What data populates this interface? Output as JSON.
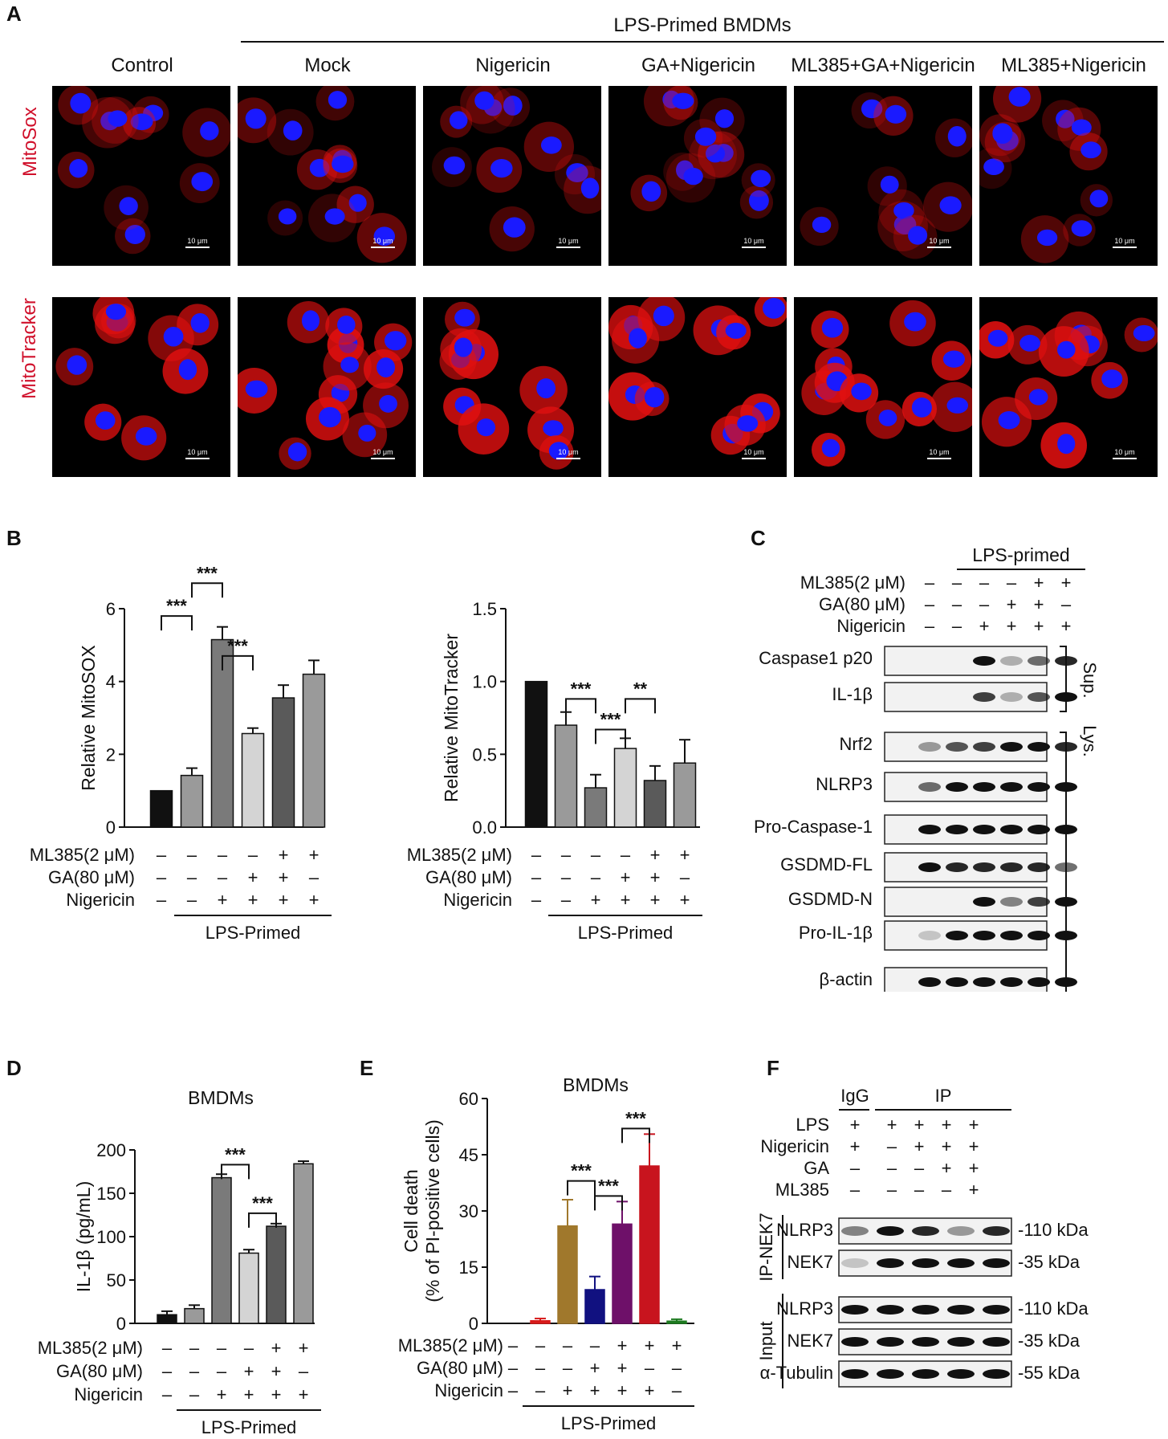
{
  "panel_letters": [
    "A",
    "B",
    "C",
    "D",
    "E",
    "F"
  ],
  "panelA": {
    "header": "LPS-Primed BMDMs",
    "conditions": [
      "Control",
      "Mock",
      "Nigericin",
      "GA+Nigericin",
      "ML385+GA+Nigericin",
      "ML385+Nigericin"
    ],
    "rows": [
      "MitoSox",
      "MitoTracker"
    ],
    "scale_bar": "10 μm",
    "colors": {
      "nucleus": "#1a1aff",
      "signal": "#e01010",
      "row_label": "#d0102b"
    }
  },
  "treatment": {
    "rows": [
      "ML385(2 μM)",
      "GA(80 μM)",
      "Nigericin"
    ],
    "primed": "LPS-Primed"
  },
  "chart_data": [
    {
      "panel": "B-left",
      "type": "bar",
      "ylabel": "Relative MitoSOX",
      "ylim": [
        0,
        6
      ],
      "yticks": [
        0,
        2,
        4,
        6
      ],
      "values": [
        1.0,
        1.42,
        5.15,
        2.57,
        3.55,
        4.2
      ],
      "errors": [
        0,
        0.2,
        0.35,
        0.15,
        0.35,
        0.38
      ],
      "bar_colors": [
        "#111111",
        "#9a9a9a",
        "#7a7a7a",
        "#d4d4d4",
        "#5a5a5a",
        "#9a9a9a"
      ],
      "ML385": [
        "–",
        "–",
        "–",
        "–",
        "+",
        "+"
      ],
      "GA": [
        "–",
        "–",
        "–",
        "+",
        "+",
        "–"
      ],
      "Nigericin": [
        "–",
        "–",
        "+",
        "+",
        "+",
        "+"
      ],
      "sig": [
        {
          "a": 2,
          "b": 1,
          "y": 5.8,
          "label": "***"
        },
        {
          "a": 3,
          "b": 2,
          "y": 6.7,
          "label": "***"
        },
        {
          "a": 4,
          "b": 3,
          "y": 4.7,
          "label": "***"
        }
      ]
    },
    {
      "panel": "B-right",
      "type": "bar",
      "ylabel": "Relative MitoTracker",
      "ylim": [
        0,
        1.5
      ],
      "yticks": [
        0.0,
        0.5,
        1.0,
        1.5
      ],
      "values": [
        1.0,
        0.7,
        0.27,
        0.54,
        0.32,
        0.44
      ],
      "errors": [
        0,
        0.09,
        0.09,
        0.07,
        0.1,
        0.16
      ],
      "bar_colors": [
        "#111111",
        "#9a9a9a",
        "#7a7a7a",
        "#d4d4d4",
        "#5a5a5a",
        "#9a9a9a"
      ],
      "ML385": [
        "–",
        "–",
        "–",
        "–",
        "+",
        "+"
      ],
      "GA": [
        "–",
        "–",
        "–",
        "+",
        "+",
        "–"
      ],
      "Nigericin": [
        "–",
        "–",
        "+",
        "+",
        "+",
        "+"
      ],
      "sig": [
        {
          "a": 2,
          "b": 3,
          "y": 0.88,
          "label": "***"
        },
        {
          "a": 3,
          "b": 4,
          "y": 0.67,
          "label": "***"
        },
        {
          "a": 4,
          "b": 5,
          "y": 0.88,
          "label": "**"
        }
      ]
    },
    {
      "panel": "D",
      "type": "bar",
      "title": "BMDMs",
      "ylabel": "IL-1β (pg/mL)",
      "ylim": [
        0,
        200
      ],
      "yticks": [
        0,
        50,
        100,
        150,
        200
      ],
      "values": [
        10,
        17,
        168,
        81,
        112,
        184
      ],
      "errors": [
        4,
        4,
        4,
        4,
        3,
        3
      ],
      "bar_colors": [
        "#111111",
        "#9a9a9a",
        "#7a7a7a",
        "#d4d4d4",
        "#5a5a5a",
        "#9a9a9a"
      ],
      "ML385": [
        "–",
        "–",
        "–",
        "–",
        "+",
        "+"
      ],
      "GA": [
        "–",
        "–",
        "–",
        "+",
        "+",
        "–"
      ],
      "Nigericin": [
        "–",
        "–",
        "+",
        "+",
        "+",
        "+"
      ],
      "sig": [
        {
          "a": 3,
          "b": 4,
          "y": 183,
          "label": "***"
        },
        {
          "a": 4,
          "b": 5,
          "y": 127,
          "label": "***"
        }
      ]
    },
    {
      "panel": "E",
      "type": "bar",
      "title": "BMDMs",
      "ylabel": "Cell death",
      "ylabel2": "(% of PI-positive cells)",
      "ylim": [
        0,
        60
      ],
      "yticks": [
        0,
        15,
        30,
        45,
        60
      ],
      "values": [
        0,
        0.7,
        26,
        9,
        26.5,
        42,
        0.6
      ],
      "errors": [
        0,
        0.6,
        7,
        3.5,
        6,
        8.5,
        0.5
      ],
      "bar_colors": [
        "#000000",
        "#d81b1b",
        "#a0782c",
        "#111180",
        "#6e1069",
        "#c8141e",
        "#1d7a20"
      ],
      "ML385": [
        "–",
        "–",
        "–",
        "–",
        "+",
        "+",
        "+"
      ],
      "GA": [
        "–",
        "–",
        "–",
        "+",
        "+",
        "–",
        "–"
      ],
      "Nigericin": [
        "–",
        "–",
        "+",
        "+",
        "+",
        "+",
        "–"
      ],
      "sig": [
        {
          "a": 3,
          "b": 4,
          "y": 38,
          "label": "***"
        },
        {
          "a": 4,
          "b": 5,
          "y": 34,
          "label": "***"
        },
        {
          "a": 5,
          "b": 6,
          "y": 52,
          "label": "***"
        }
      ]
    }
  ],
  "panelC": {
    "header": "LPS-primed",
    "ML385": [
      "–",
      "–",
      "–",
      "–",
      "+",
      "+"
    ],
    "GA": [
      "–",
      "–",
      "–",
      "+",
      "+",
      "–"
    ],
    "Nigericin": [
      "–",
      "–",
      "+",
      "+",
      "+",
      "+"
    ],
    "treatment_rows": [
      "ML385(2 μM)",
      "GA(80 μM)",
      "Nigericin"
    ],
    "blots": [
      "Caspase1 p20",
      "IL-1β",
      "Nrf2",
      "NLRP3",
      "Pro-Caspase-1",
      "GSDMD-FL",
      "GSDMD-N",
      "Pro-IL-1β",
      "β-actin"
    ],
    "group_sup": "Sup.",
    "group_lys": "Lys."
  },
  "panelF": {
    "igg": "IgG",
    "ip": "IP",
    "treatment_rows": [
      "LPS",
      "Nigericin",
      "GA",
      "ML385"
    ],
    "LPS": [
      "+",
      "+",
      "+",
      "+",
      "+"
    ],
    "Nigericin": [
      "+",
      "–",
      "+",
      "+",
      "+"
    ],
    "GA": [
      "–",
      "–",
      "–",
      "+",
      "+"
    ],
    "ML385": [
      "–",
      "–",
      "–",
      "–",
      "+"
    ],
    "group_ip": "IP-NEK7",
    "group_input": "Input",
    "blots": [
      {
        "name": "NLRP3",
        "kda": "-110 kDa"
      },
      {
        "name": "NEK7",
        "kda": "-35 kDa"
      },
      {
        "name": "NLRP3",
        "kda": "-110 kDa"
      },
      {
        "name": "NEK7",
        "kda": "-35 kDa"
      },
      {
        "name": "α-Tubulin",
        "kda": "-55 kDa"
      }
    ]
  }
}
